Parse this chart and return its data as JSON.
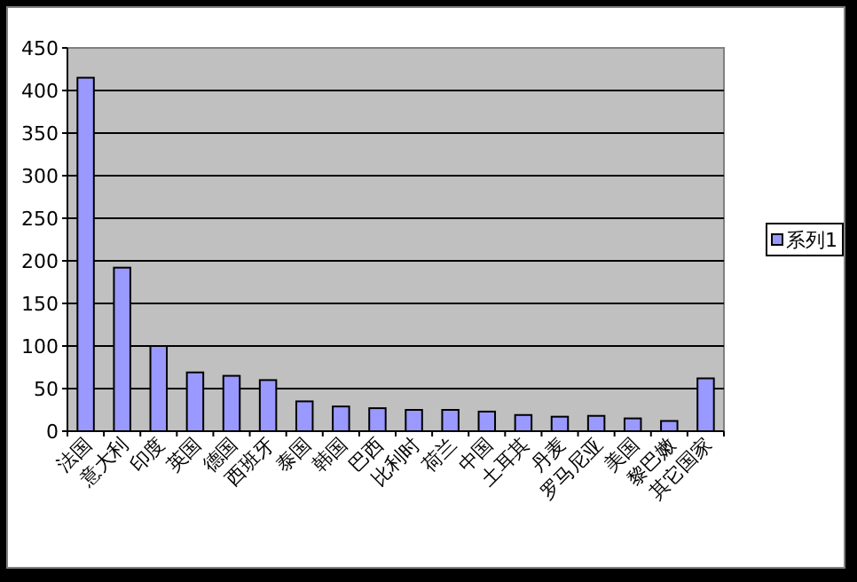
{
  "chart_data": {
    "type": "bar",
    "categories": [
      "法国",
      "意大利",
      "印度",
      "英国",
      "德国",
      "西班牙",
      "泰国",
      "韩国",
      "巴西",
      "比利时",
      "荷兰",
      "中国",
      "土耳其",
      "丹麦",
      "罗马尼亚",
      "美国",
      "黎巴嫩",
      "其它国家"
    ],
    "series": [
      {
        "name": "系列1",
        "color": "#9999ff",
        "values": [
          415,
          192,
          100,
          69,
          65,
          60,
          35,
          29,
          27,
          25,
          25,
          23,
          19,
          17,
          18,
          15,
          12,
          62
        ]
      }
    ],
    "ylim": [
      0,
      450
    ],
    "yticks": [
      0,
      50,
      100,
      150,
      200,
      250,
      300,
      350,
      400,
      450
    ],
    "grid": "y",
    "legend": "right"
  }
}
